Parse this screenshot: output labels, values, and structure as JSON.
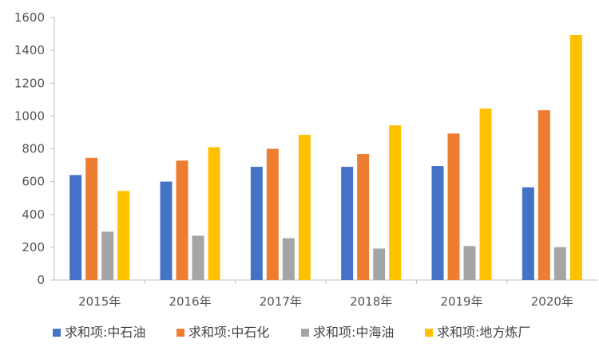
{
  "chart_data": {
    "type": "bar",
    "categories": [
      "2015年",
      "2016年",
      "2017年",
      "2018年",
      "2019年",
      "2020年"
    ],
    "series": [
      {
        "name": "求和项:中石油",
        "color": "#4472C4",
        "values": [
          640,
          600,
          690,
          690,
          695,
          565
        ]
      },
      {
        "name": "求和项:中石化",
        "color": "#ED7D31",
        "values": [
          745,
          728,
          800,
          768,
          893,
          1035
        ]
      },
      {
        "name": "求和项:中海油",
        "color": "#A5A5A5",
        "values": [
          295,
          270,
          255,
          192,
          207,
          200
        ]
      },
      {
        "name": "求和项:地方炼厂",
        "color": "#FFC000",
        "values": [
          543,
          810,
          885,
          943,
          1045,
          1493
        ]
      }
    ],
    "ylim": [
      0,
      1600
    ],
    "yticks": [
      0,
      200,
      400,
      600,
      800,
      1000,
      1200,
      1400,
      1600
    ],
    "grid": false,
    "legend_position": "bottom"
  }
}
